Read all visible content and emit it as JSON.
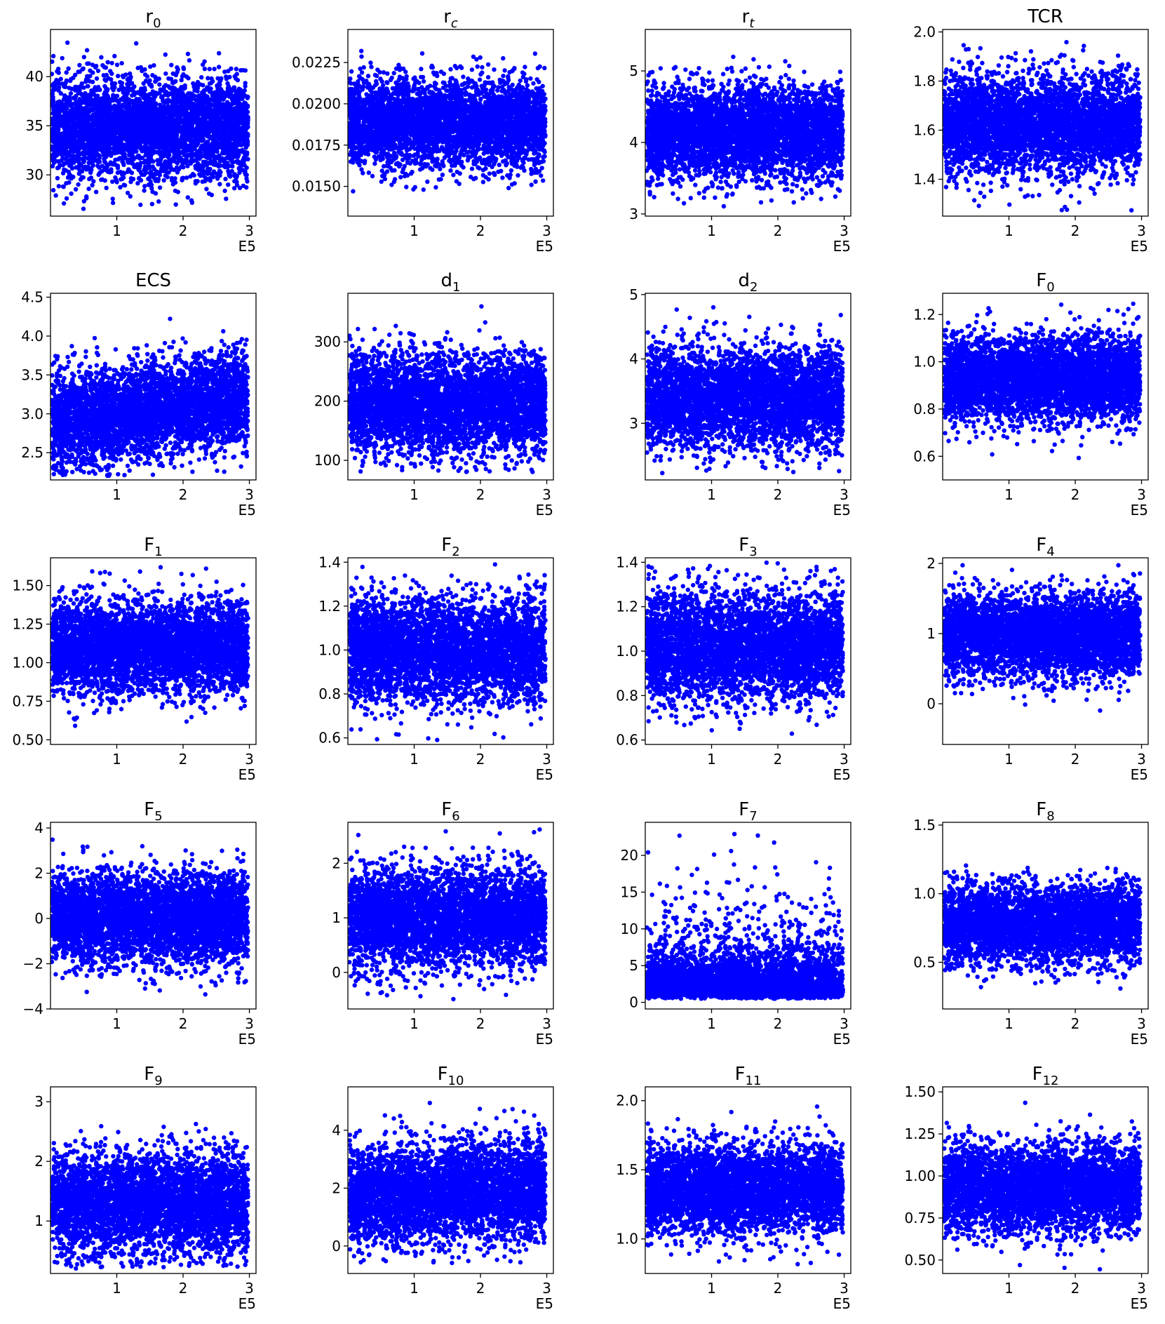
{
  "figure": {
    "point_color": "#0000ff",
    "point_count_per_panel": 4200,
    "x_multiplier_label": "E5"
  },
  "chart_data": [
    {
      "type": "scatter",
      "title_base": "r",
      "title_sub": "0",
      "xlim": [
        0,
        3.1
      ],
      "xticks": [
        1,
        2,
        3
      ],
      "xtick_labels": [
        "1",
        "2",
        "3"
      ],
      "ylim": [
        25.8,
        44.8
      ],
      "yticks": [
        30,
        35,
        40
      ],
      "ytick_labels": [
        "30",
        "35",
        "40"
      ],
      "distribution": {
        "mean": 34.8,
        "sd": 2.5,
        "min": 26.5,
        "max": 44.0,
        "trend": 0
      }
    },
    {
      "type": "scatter",
      "title_base": "r",
      "title_sub": "c",
      "sub_italic": true,
      "xlim": [
        0,
        3.1
      ],
      "xticks": [
        1,
        2,
        3
      ],
      "xtick_labels": [
        "1",
        "2",
        "3"
      ],
      "ylim": [
        0.0132,
        0.0245
      ],
      "yticks": [
        0.015,
        0.0175,
        0.02,
        0.0225
      ],
      "ytick_labels": [
        "0.0150",
        "0.0175",
        "0.0200",
        "0.0225"
      ],
      "distribution": {
        "mean": 0.0189,
        "sd": 0.0013,
        "min": 0.0137,
        "max": 0.0242,
        "trend": 0
      }
    },
    {
      "type": "scatter",
      "title_base": "r",
      "title_sub": "t",
      "sub_italic": true,
      "xlim": [
        0,
        3.1
      ],
      "xticks": [
        1,
        2,
        3
      ],
      "xtick_labels": [
        "1",
        "2",
        "3"
      ],
      "ylim": [
        2.97,
        5.58
      ],
      "yticks": [
        3,
        4,
        5
      ],
      "ytick_labels": [
        "3",
        "4",
        "5"
      ],
      "distribution": {
        "mean": 4.15,
        "sd": 0.32,
        "min": 3.05,
        "max": 5.45,
        "trend": 0
      }
    },
    {
      "type": "scatter",
      "title_base": "TCR",
      "title_sub": "",
      "xlim": [
        0,
        3.1
      ],
      "xticks": [
        1,
        2,
        3
      ],
      "xtick_labels": [
        "1",
        "2",
        "3"
      ],
      "ylim": [
        1.25,
        2.01
      ],
      "yticks": [
        1.4,
        1.6,
        1.8,
        2.0
      ],
      "ytick_labels": [
        "1.4",
        "1.6",
        "1.8",
        "2.0"
      ],
      "distribution": {
        "mean": 1.62,
        "sd": 0.1,
        "min": 1.27,
        "max": 1.98,
        "trend": 0
      }
    },
    {
      "type": "scatter",
      "title_base": "ECS",
      "title_sub": "",
      "xlim": [
        0,
        3.1
      ],
      "xticks": [
        1,
        2,
        3
      ],
      "xtick_labels": [
        "1",
        "2",
        "3"
      ],
      "ylim": [
        2.15,
        4.55
      ],
      "yticks": [
        2.5,
        3.0,
        3.5,
        4.0,
        4.5
      ],
      "ytick_labels": [
        "2.5",
        "3.0",
        "3.5",
        "4.0",
        "4.5"
      ],
      "distribution": {
        "mean": 3.05,
        "sd": 0.3,
        "min": 2.2,
        "max": 4.4,
        "trend": 0.1
      }
    },
    {
      "type": "scatter",
      "title_base": "d",
      "title_sub": "1",
      "xlim": [
        0,
        3.1
      ],
      "xticks": [
        1,
        2,
        3
      ],
      "xtick_labels": [
        "1",
        "2",
        "3"
      ],
      "ylim": [
        67,
        382
      ],
      "yticks": [
        100,
        200,
        300
      ],
      "ytick_labels": [
        "100",
        "200",
        "300"
      ],
      "distribution": {
        "mean": 195,
        "sd": 42,
        "min": 80,
        "max": 370,
        "trend": 0
      }
    },
    {
      "type": "scatter",
      "title_base": "d",
      "title_sub": "2",
      "xlim": [
        0,
        3.1
      ],
      "xticks": [
        1,
        2,
        3
      ],
      "xtick_labels": [
        "1",
        "2",
        "3"
      ],
      "ylim": [
        2.12,
        5.02
      ],
      "yticks": [
        3,
        4,
        5
      ],
      "ytick_labels": [
        "3",
        "4",
        "5"
      ],
      "distribution": {
        "mean": 3.4,
        "sd": 0.38,
        "min": 2.2,
        "max": 4.9,
        "trend": 0
      }
    },
    {
      "type": "scatter",
      "title_base": "F",
      "title_sub": "0",
      "xlim": [
        0,
        3.1
      ],
      "xticks": [
        1,
        2,
        3
      ],
      "xtick_labels": [
        "1",
        "2",
        "3"
      ],
      "ylim": [
        0.5,
        1.29
      ],
      "yticks": [
        0.6,
        0.8,
        1.0,
        1.2
      ],
      "ytick_labels": [
        "0.6",
        "0.8",
        "1.0",
        "1.2"
      ],
      "distribution": {
        "mean": 0.93,
        "sd": 0.09,
        "min": 0.53,
        "max": 1.25,
        "trend": 0
      }
    },
    {
      "type": "scatter",
      "title_base": "F",
      "title_sub": "1",
      "xlim": [
        0,
        3.1
      ],
      "xticks": [
        1,
        2,
        3
      ],
      "xtick_labels": [
        "1",
        "2",
        "3"
      ],
      "ylim": [
        0.47,
        1.68
      ],
      "yticks": [
        0.5,
        0.75,
        1.0,
        1.25,
        1.5
      ],
      "ytick_labels": [
        "0.50",
        "0.75",
        "1.00",
        "1.25",
        "1.50"
      ],
      "distribution": {
        "mean": 1.1,
        "sd": 0.15,
        "min": 0.5,
        "max": 1.64,
        "trend": 0
      }
    },
    {
      "type": "scatter",
      "title_base": "F",
      "title_sub": "2",
      "xlim": [
        0,
        3.1
      ],
      "xticks": [
        1,
        2,
        3
      ],
      "xtick_labels": [
        "1",
        "2",
        "3"
      ],
      "ylim": [
        0.57,
        1.42
      ],
      "yticks": [
        0.6,
        0.8,
        1.0,
        1.2,
        1.4
      ],
      "ytick_labels": [
        "0.6",
        "0.8",
        "1.0",
        "1.2",
        "1.4"
      ],
      "distribution": {
        "mean": 1.0,
        "sd": 0.12,
        "min": 0.59,
        "max": 1.41,
        "trend": 0
      }
    },
    {
      "type": "scatter",
      "title_base": "F",
      "title_sub": "3",
      "xlim": [
        0,
        3.1
      ],
      "xticks": [
        1,
        2,
        3
      ],
      "xtick_labels": [
        "1",
        "2",
        "3"
      ],
      "ylim": [
        0.58,
        1.42
      ],
      "yticks": [
        0.6,
        0.8,
        1.0,
        1.2,
        1.4
      ],
      "ytick_labels": [
        "0.6",
        "0.8",
        "1.0",
        "1.2",
        "1.4"
      ],
      "distribution": {
        "mean": 1.02,
        "sd": 0.12,
        "min": 0.61,
        "max": 1.4,
        "trend": 0
      }
    },
    {
      "type": "scatter",
      "title_base": "F",
      "title_sub": "4",
      "xlim": [
        0,
        3.1
      ],
      "xticks": [
        1,
        2,
        3
      ],
      "xtick_labels": [
        "1",
        "2",
        "3"
      ],
      "ylim": [
        -0.58,
        2.08
      ],
      "yticks": [
        0,
        1,
        2
      ],
      "ytick_labels": [
        "0",
        "1",
        "2"
      ],
      "distribution": {
        "mean": 0.98,
        "sd": 0.3,
        "min": -0.42,
        "max": 1.98,
        "trend": 0
      }
    },
    {
      "type": "scatter",
      "title_base": "F",
      "title_sub": "5",
      "xlim": [
        0,
        3.1
      ],
      "xticks": [
        1,
        2,
        3
      ],
      "xtick_labels": [
        "1",
        "2",
        "3"
      ],
      "ylim": [
        -4.0,
        4.25
      ],
      "yticks": [
        -4,
        -2,
        0,
        2,
        4
      ],
      "ytick_labels": [
        "−4",
        "−2",
        "0",
        "2",
        "4"
      ],
      "distribution": {
        "mean": 0.0,
        "sd": 1.0,
        "min": -3.7,
        "max": 3.9,
        "trend": 0
      }
    },
    {
      "type": "scatter",
      "title_base": "F",
      "title_sub": "6",
      "xlim": [
        0,
        3.1
      ],
      "xticks": [
        1,
        2,
        3
      ],
      "xtick_labels": [
        "1",
        "2",
        "3"
      ],
      "ylim": [
        -0.67,
        2.75
      ],
      "yticks": [
        0,
        1,
        2
      ],
      "ytick_labels": [
        "0",
        "1",
        "2"
      ],
      "distribution": {
        "mean": 1.0,
        "sd": 0.45,
        "min": -0.5,
        "max": 2.65,
        "trend": 0
      }
    },
    {
      "type": "scatter",
      "title_base": "F",
      "title_sub": "7",
      "xlim": [
        0,
        3.1
      ],
      "xticks": [
        1,
        2,
        3
      ],
      "xtick_labels": [
        "1",
        "2",
        "3"
      ],
      "ylim": [
        -0.9,
        24.5
      ],
      "yticks": [
        0,
        5,
        10,
        15,
        20
      ],
      "ytick_labels": [
        "0",
        "5",
        "10",
        "15",
        "20"
      ],
      "distribution": {
        "mean": 2.4,
        "sd": 1.6,
        "min": 0.5,
        "max": 23.0,
        "trend": 0,
        "skew": "log"
      }
    },
    {
      "type": "scatter",
      "title_base": "F",
      "title_sub": "8",
      "xlim": [
        0,
        3.1
      ],
      "xticks": [
        1,
        2,
        3
      ],
      "xtick_labels": [
        "1",
        "2",
        "3"
      ],
      "ylim": [
        0.16,
        1.52
      ],
      "yticks": [
        0.5,
        1.0,
        1.5
      ],
      "ytick_labels": [
        "0.5",
        "1.0",
        "1.5"
      ],
      "distribution": {
        "mean": 0.78,
        "sd": 0.14,
        "min": 0.2,
        "max": 1.45,
        "trend": 0
      }
    },
    {
      "type": "scatter",
      "title_base": "F",
      "title_sub": "9",
      "xlim": [
        0,
        3.1
      ],
      "xticks": [
        1,
        2,
        3
      ],
      "xtick_labels": [
        "1",
        "2",
        "3"
      ],
      "ylim": [
        0.12,
        3.25
      ],
      "yticks": [
        1,
        2,
        3
      ],
      "ytick_labels": [
        "1",
        "2",
        "3"
      ],
      "distribution": {
        "mean": 1.3,
        "sd": 0.42,
        "min": 0.2,
        "max": 3.15,
        "trend": 0
      }
    },
    {
      "type": "scatter",
      "title_base": "F",
      "title_sub": "10",
      "xlim": [
        0,
        3.1
      ],
      "xticks": [
        1,
        2,
        3
      ],
      "xtick_labels": [
        "1",
        "2",
        "3"
      ],
      "ylim": [
        -0.95,
        5.5
      ],
      "yticks": [
        0,
        2,
        4
      ],
      "ytick_labels": [
        "0",
        "2",
        "4"
      ],
      "distribution": {
        "mean": 1.85,
        "sd": 0.85,
        "min": -0.6,
        "max": 5.2,
        "trend": 0.1
      }
    },
    {
      "type": "scatter",
      "title_base": "F",
      "title_sub": "11",
      "xlim": [
        0,
        3.1
      ],
      "xticks": [
        1,
        2,
        3
      ],
      "xtick_labels": [
        "1",
        "2",
        "3"
      ],
      "ylim": [
        0.75,
        2.1
      ],
      "yticks": [
        1.0,
        1.5,
        2.0
      ],
      "ytick_labels": [
        "1.0",
        "1.5",
        "2.0"
      ],
      "distribution": {
        "mean": 1.36,
        "sd": 0.16,
        "min": 0.8,
        "max": 2.05,
        "trend": 0
      }
    },
    {
      "type": "scatter",
      "title_base": "F",
      "title_sub": "12",
      "xlim": [
        0,
        3.1
      ],
      "xticks": [
        1,
        2,
        3
      ],
      "xtick_labels": [
        "1",
        "2",
        "3"
      ],
      "ylim": [
        0.42,
        1.53
      ],
      "yticks": [
        0.5,
        0.75,
        1.0,
        1.25,
        1.5
      ],
      "ytick_labels": [
        "0.50",
        "0.75",
        "1.00",
        "1.25",
        "1.50"
      ],
      "distribution": {
        "mean": 0.93,
        "sd": 0.13,
        "min": 0.44,
        "max": 1.49,
        "trend": 0
      }
    }
  ]
}
